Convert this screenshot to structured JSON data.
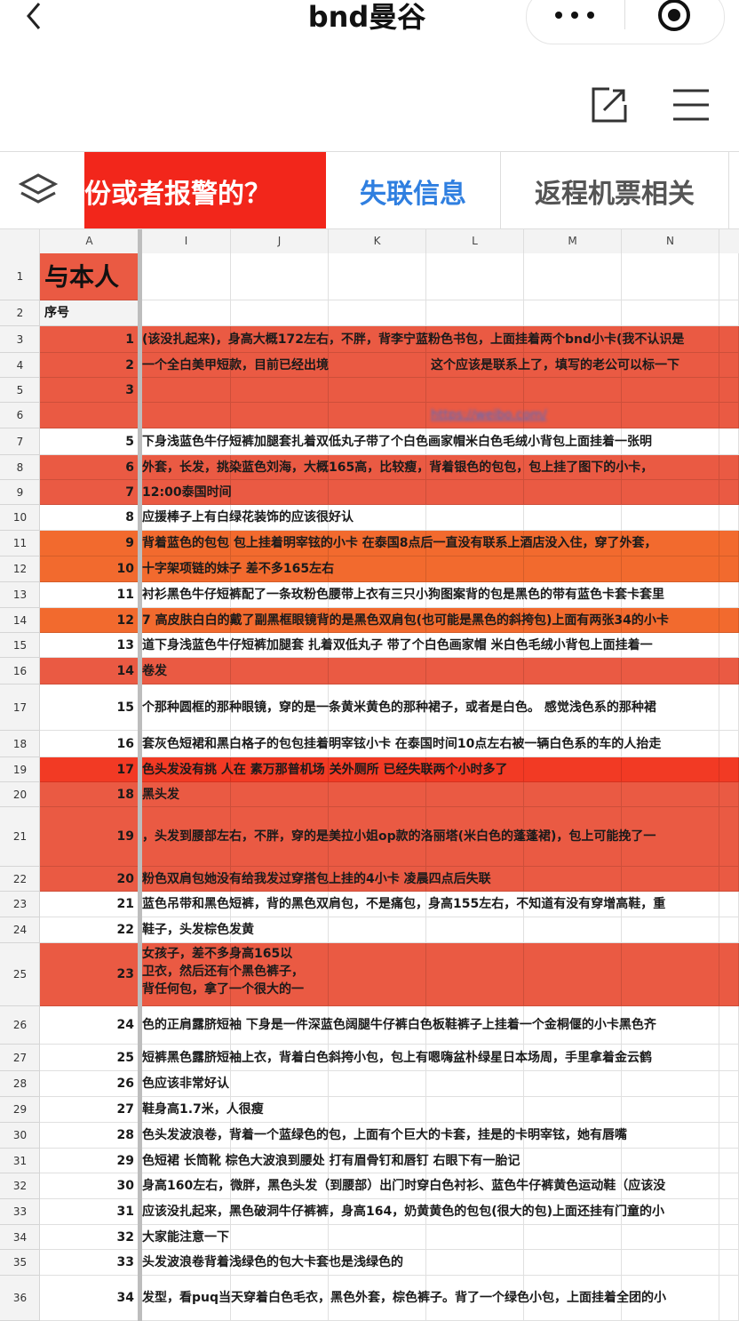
{
  "header": {
    "title": "bnd曼谷"
  },
  "tabs": [
    "份或者报警的？",
    "失联信息",
    "返程机票相关"
  ],
  "sheet": {
    "columns": [
      "A",
      "I",
      "J",
      "K",
      "L",
      "M",
      "N"
    ],
    "rows": [
      {
        "number": 1,
        "A": "与本人"
      },
      {
        "number": 2,
        "A": "序号"
      },
      {
        "number": 3,
        "seq": 1,
        "text": "(该没扎起来)，身高大概172左右，不胖，背李宁蓝粉色书包，上面挂着两个bnd小卡(我不认识是",
        "fill": "#ea5a43"
      },
      {
        "number": 4,
        "seq": 2,
        "text": "一个全白美甲短款，目前已经出境",
        "note": "这个应该是联系上了，填写的老公可以标一下",
        "fill": "#ea5a43"
      },
      {
        "number": 5,
        "seq": 3,
        "fill": "#ea5a43"
      },
      {
        "number": 6,
        "link": "https://weibo.com/",
        "fill": "#ea5a43"
      },
      {
        "number": 7,
        "seq": 5,
        "text": "下身浅蓝色牛仔短裤加腿套扎着双低丸子带了个白色画家帽米白色毛绒小背包上面挂着一张明"
      },
      {
        "number": 8,
        "seq": 6,
        "text": "外套，长发，挑染蓝色刘海，大概165高，比较瘦，背着银色的包包，包上挂了图下的小卡，",
        "fill": "#ea5a43"
      },
      {
        "number": 9,
        "seq": 7,
        "text": "12:00泰国时间",
        "fill": "#ea5a43"
      },
      {
        "number": 10,
        "seq": 8,
        "text": "应援棒子上有白绿花装饰的应该很好认"
      },
      {
        "number": 11,
        "seq": 9,
        "text": "背着蓝色的包包 包上挂着明宰铉的小卡 在泰国8点后一直没有联系上酒店没入住，穿了外套，",
        "fill": "#f26a2e"
      },
      {
        "number": 12,
        "seq": 10,
        "text": "十字架项链的妹子 差不多165左右",
        "fill": "#f26a2e"
      },
      {
        "number": 13,
        "seq": 11,
        "text": "衬衫黑色牛仔短裤配了一条玫粉色腰带上衣有三只小狗图案背的包是黑色的带有蓝色卡套卡套里"
      },
      {
        "number": 14,
        "seq": 12,
        "text": "7 高皮肤白白的戴了副黑框眼镜背的是黑色双肩包(也可能是黑色的斜挎包)上面有两张34的小卡",
        "fill": "#f26a2e"
      },
      {
        "number": 15,
        "seq": 13,
        "text": "道下身浅蓝色牛仔短裤加腿套 扎着双低丸子 带了个白色画家帽 米白色毛绒小背包上面挂着一"
      },
      {
        "number": 16,
        "seq": 14,
        "text": "卷发",
        "fill": "#ea5a43"
      },
      {
        "number": 17,
        "seq": 15,
        "text": "个那种圆框的那种眼镜，穿的是一条黄米黄色的那种裙子，或者是白色。 感觉浅色系的那种裙"
      },
      {
        "number": 18,
        "seq": 16,
        "text": "套灰色短裙和黑白格子的包包挂着明宰铉小卡 在泰国时间10点左右被一辆白色系的车的人抬走"
      },
      {
        "number": 19,
        "seq": 17,
        "text": "色头发没有挑 人在 素万那普机场 关外厕所 已经失联两个小时多了",
        "fill": "#f23a24"
      },
      {
        "number": 20,
        "seq": 18,
        "text": "黑头发",
        "fill": "#ea5a43"
      },
      {
        "number": 21,
        "seq": 19,
        "text": "，头发到腰部左右，不胖，穿的是美拉小姐op款的洛丽塔(米白色的蓬蓬裙)，包上可能挽了一",
        "fill": "#ea5a43"
      },
      {
        "number": 22,
        "seq": 20,
        "text": "粉色双肩包她没有给我发过穿搭包上挂的4小卡 凌晨四点后失联",
        "fill": "#ea5a43"
      },
      {
        "number": 23,
        "seq": 21,
        "text": "蓝色吊带和黑色短裤，背的黑色双肩包，不是痛包，身高155左右，不知道有没有穿增高鞋，重"
      },
      {
        "number": 24,
        "seq": 22,
        "text": "鞋子，头发棕色发黄"
      },
      {
        "number": 25,
        "seq": 23,
        "text": "女孩子，差不多身高165以\n卫衣，然后还有个黑色裤子，\n背任何包，拿了一个很大的一",
        "fill": "#ea5a43"
      },
      {
        "number": 26,
        "seq": 24,
        "text": "色的正肩露脐短袖 下身是一件深蓝色阔腿牛仔裤白色板鞋裤子上挂着一个金桐偃的小卡黑色齐"
      },
      {
        "number": 27,
        "seq": 25,
        "text": "短裤黑色露脐短袖上衣，背着白色斜挎小包，包上有嗯嗨盆朴绿星日本场周，手里拿着金云鹤"
      },
      {
        "number": 28,
        "seq": 26,
        "text": "色应该非常好认"
      },
      {
        "number": 29,
        "seq": 27,
        "text": "鞋身高1.7米，人很瘦"
      },
      {
        "number": 30,
        "seq": 28,
        "text": "色头发波浪卷，背着一个蓝绿色的包，上面有个巨大的卡套，挂是的卡明宰铉，她有唇嘴"
      },
      {
        "number": 31,
        "seq": 29,
        "text": "色短裙 长筒靴 棕色大波浪到腰处 打有眉骨钉和唇钉 右眼下有一胎记"
      },
      {
        "number": 32,
        "seq": 30,
        "text": "身高160左右，微胖，黑色头发（到腰部）出门时穿白色衬衫、蓝色牛仔裤黄色运动鞋（应该没"
      },
      {
        "number": 33,
        "seq": 31,
        "text": "应该没扎起来，黑色破洞牛仔裤裤，身高164，奶黄黄色的包包(很大的包)上面还挂有门童的小"
      },
      {
        "number": 34,
        "seq": 32,
        "text": "大家能注意一下"
      },
      {
        "number": 35,
        "seq": 33,
        "text": "头发波浪卷背着浅绿色的包大卡套也是浅绿色的"
      },
      {
        "number": 36,
        "seq": 34,
        "text": "发型，看puq当天穿着白色毛衣，黑色外套，棕色裤子。背了一个绿色小包，上面挂着全团的小"
      }
    ]
  }
}
